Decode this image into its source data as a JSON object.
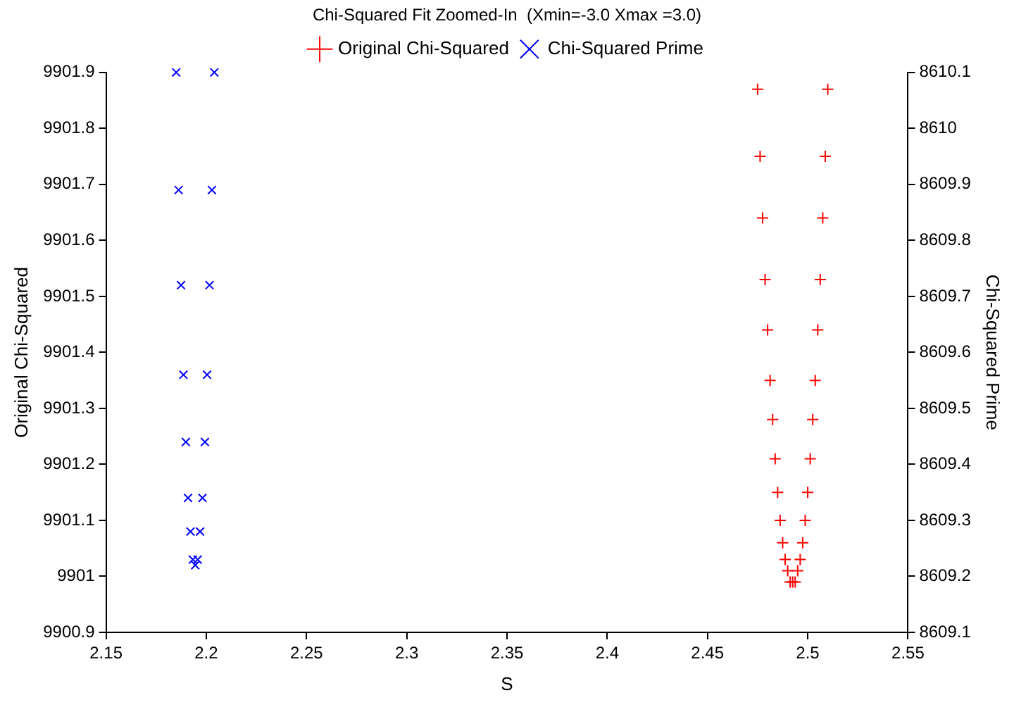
{
  "chart_data": {
    "type": "scatter",
    "title": "Chi-Squared Fit Zoomed-In  (Xmin=-3.0 Xmax =3.0)",
    "xlabel": "S",
    "ylabel": "Original Chi-Squared",
    "y2label": "Chi-Squared Prime",
    "xlim": [
      2.15,
      2.55
    ],
    "xticks": [
      2.15,
      2.2,
      2.25,
      2.3,
      2.35,
      2.4,
      2.45,
      2.5,
      2.55
    ],
    "ylim": [
      9900.9,
      9901.9
    ],
    "yticks": [
      9900.9,
      9901,
      9901.1,
      9901.2,
      9901.3,
      9901.4,
      9901.5,
      9901.6,
      9901.7,
      9901.8,
      9901.9
    ],
    "y2lim": [
      8609.1,
      8610.1
    ],
    "y2ticks": [
      8609.1,
      8609.2,
      8609.3,
      8609.4,
      8609.5,
      8609.6,
      8609.7,
      8609.8,
      8609.9,
      8610,
      8610.1
    ],
    "legend": "top",
    "grid": false,
    "series": [
      {
        "name": "Original Chi-Squared",
        "color": "#ff0000",
        "marker": "cross",
        "x": [
          2.475,
          2.47625,
          2.4775,
          2.47875,
          2.48,
          2.48125,
          2.4825,
          2.48375,
          2.485,
          2.48625,
          2.4875,
          2.48875,
          2.49,
          2.49125,
          2.4925,
          2.49375,
          2.495,
          2.49625,
          2.4975,
          2.49875,
          2.5,
          2.50125,
          2.5025,
          2.50375,
          2.505,
          2.50625,
          2.5075,
          2.50875,
          2.51
        ],
        "values": [
          9901.87,
          9901.75,
          9901.64,
          9901.53,
          9901.44,
          9901.35,
          9901.28,
          9901.21,
          9901.15,
          9901.1,
          9901.06,
          9901.03,
          9901.01,
          9900.99,
          9900.99,
          9900.99,
          9901.01,
          9901.03,
          9901.06,
          9901.1,
          9901.15,
          9901.21,
          9901.28,
          9901.35,
          9901.44,
          9901.53,
          9901.64,
          9901.75,
          9901.87
        ]
      },
      {
        "name": "Chi-Squared Prime",
        "color": "#0000ff",
        "marker": "x",
        "axis": "y2",
        "x": [
          2.185,
          2.1862,
          2.1874,
          2.1886,
          2.1898,
          2.1909,
          2.1921,
          2.1933,
          2.1945,
          2.1957,
          2.1969,
          2.1981,
          2.1993,
          2.2004,
          2.2016,
          2.2028,
          2.204
        ],
        "values": [
          8610.1,
          8609.89,
          8609.72,
          8609.56,
          8609.44,
          8609.34,
          8609.28,
          8609.23,
          8609.22,
          8609.23,
          8609.28,
          8609.34,
          8609.44,
          8609.56,
          8609.72,
          8609.89,
          8610.1
        ]
      }
    ]
  }
}
